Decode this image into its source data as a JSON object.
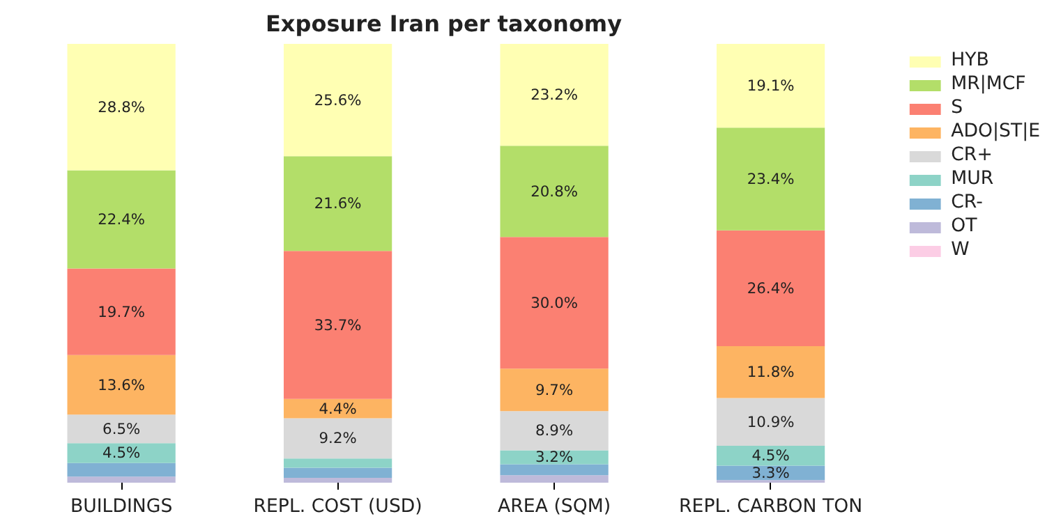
{
  "chart_data": {
    "type": "bar",
    "title": "Exposure Iran per taxonomy",
    "stacked": true,
    "categories": [
      "BUILDINGS",
      "REPL. COST (USD)",
      "AREA (SQM)",
      "REPL. CARBON TON"
    ],
    "ylim": [
      0,
      100
    ],
    "tick_labels": "x",
    "legend": "top right",
    "grid": false,
    "series": [
      {
        "name": "W",
        "color": "#fccde5",
        "values": [
          0.0,
          0.0,
          0.0,
          0.0
        ],
        "value_labels": [
          null,
          null,
          null,
          null
        ]
      },
      {
        "name": "OT",
        "color": "#bebada",
        "values": [
          1.4,
          1.1,
          1.7,
          0.6
        ],
        "value_labels": [
          null,
          null,
          null,
          null
        ]
      },
      {
        "name": "CR-",
        "color": "#80b1d3",
        "values": [
          3.1,
          2.3,
          2.5,
          3.3
        ],
        "value_labels": [
          null,
          null,
          null,
          "3.3%"
        ]
      },
      {
        "name": "MUR",
        "color": "#8dd3c7",
        "values": [
          4.5,
          2.1,
          3.2,
          4.5
        ],
        "value_labels": [
          "4.5%",
          null,
          "3.2%",
          "4.5%"
        ]
      },
      {
        "name": "CR+",
        "color": "#d9d9d9",
        "values": [
          6.5,
          9.2,
          8.9,
          10.9
        ],
        "value_labels": [
          "6.5%",
          "9.2%",
          "8.9%",
          "10.9%"
        ]
      },
      {
        "name": "ADO|ST|E",
        "color": "#fdb462",
        "values": [
          13.6,
          4.4,
          9.7,
          11.8
        ],
        "value_labels": [
          "13.6%",
          "4.4%",
          "9.7%",
          "11.8%"
        ]
      },
      {
        "name": "S",
        "color": "#fb8072",
        "values": [
          19.7,
          33.7,
          30.0,
          26.4
        ],
        "value_labels": [
          "19.7%",
          "33.7%",
          "30.0%",
          "26.4%"
        ]
      },
      {
        "name": "MR|MCF",
        "color": "#b3de69",
        "values": [
          22.4,
          21.6,
          20.8,
          23.4
        ],
        "value_labels": [
          "22.4%",
          "21.6%",
          "20.8%",
          "23.4%"
        ]
      },
      {
        "name": "HYB",
        "color": "#ffffb3",
        "values": [
          28.8,
          25.6,
          23.2,
          19.1
        ],
        "value_labels": [
          "28.8%",
          "25.6%",
          "23.2%",
          "19.1%"
        ]
      }
    ]
  }
}
